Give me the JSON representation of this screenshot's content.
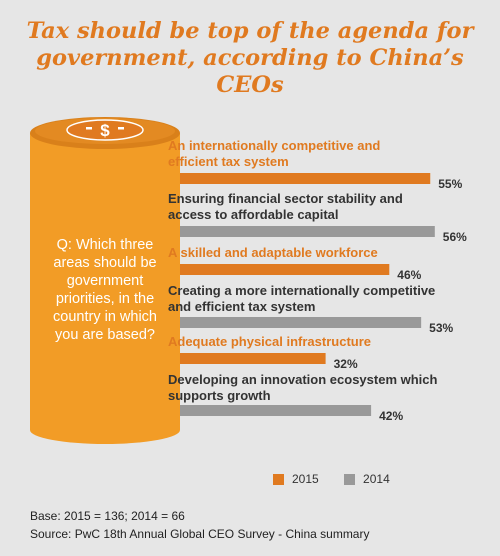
{
  "title_lines": [
    "Tax should be top of the agenda for",
    "government, according to China’s CEOs"
  ],
  "question_lines": [
    "Q: Which three",
    "areas should be",
    "government",
    "priorities, in the",
    "country in which",
    "you are based?"
  ],
  "colors": {
    "y2015": "#e07a20",
    "y2014": "#999999",
    "text2014": "#333333",
    "cylinder": "#f29c26",
    "cylinder_dark": "#d9801a",
    "coin": "#e07a20"
  },
  "chart_data": {
    "type": "bar",
    "orientation": "horizontal",
    "title": "Tax should be top of the agenda for government, according to China’s CEOs",
    "xlim": [
      0,
      100
    ],
    "bars": [
      {
        "label_lines": [
          "An internationally competitive and",
          "efficient tax system"
        ],
        "series": "2015",
        "value": 55,
        "display": "55%"
      },
      {
        "label_lines": [
          "Ensuring financial sector stability and",
          "access to affordable capital"
        ],
        "series": "2014",
        "value": 56,
        "display": "56%"
      },
      {
        "label_lines": [
          "A skilled and adaptable workforce"
        ],
        "series": "2015",
        "value": 46,
        "display": "46%"
      },
      {
        "label_lines": [
          "Creating a more internationally competitive",
          "and efficient tax system"
        ],
        "series": "2014",
        "value": 53,
        "display": "53%"
      },
      {
        "label_lines": [
          "Adequate physical infrastructure"
        ],
        "series": "2015",
        "value": 32,
        "display": "32%"
      },
      {
        "label_lines": [
          "Developing an innovation ecosystem which",
          "supports growth"
        ],
        "series": "2014",
        "value": 42,
        "display": "42%"
      }
    ],
    "legend": [
      {
        "name": "2015",
        "color": "#e07a20"
      },
      {
        "name": "2014",
        "color": "#999999"
      }
    ],
    "legend_position": "bottom-right"
  },
  "footer": {
    "base": "Base: 2015 = 136; 2014 = 66",
    "source": "Source: PwC 18th Annual Global CEO Survey - China summary"
  }
}
